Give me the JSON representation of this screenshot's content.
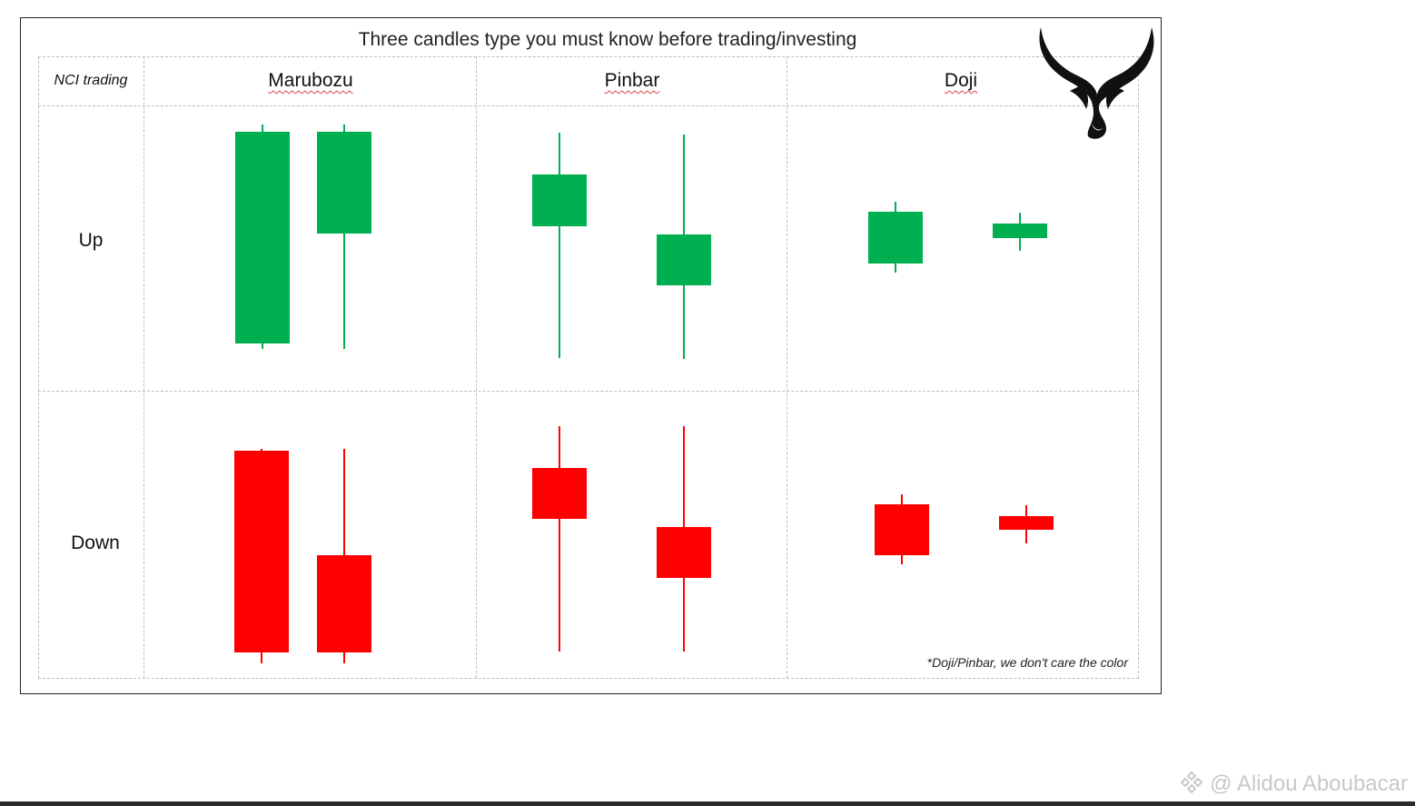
{
  "title": "Three candles type you must know before trading/investing",
  "brand": "NCI trading",
  "columns": [
    "Marubozu",
    "Pinbar",
    "Doji"
  ],
  "rows": [
    "Up",
    "Down"
  ],
  "note": "*Doji/Pinbar, we don't care the color",
  "watermark": "@ Alidou Aboubacar",
  "colors": {
    "up": "#00b050",
    "down": "#ff0000",
    "border": "#222222",
    "grid": "#bdbdbd"
  },
  "icons": {
    "logo": "bull-horns-icon",
    "watermark": "binance-logo-icon"
  }
}
